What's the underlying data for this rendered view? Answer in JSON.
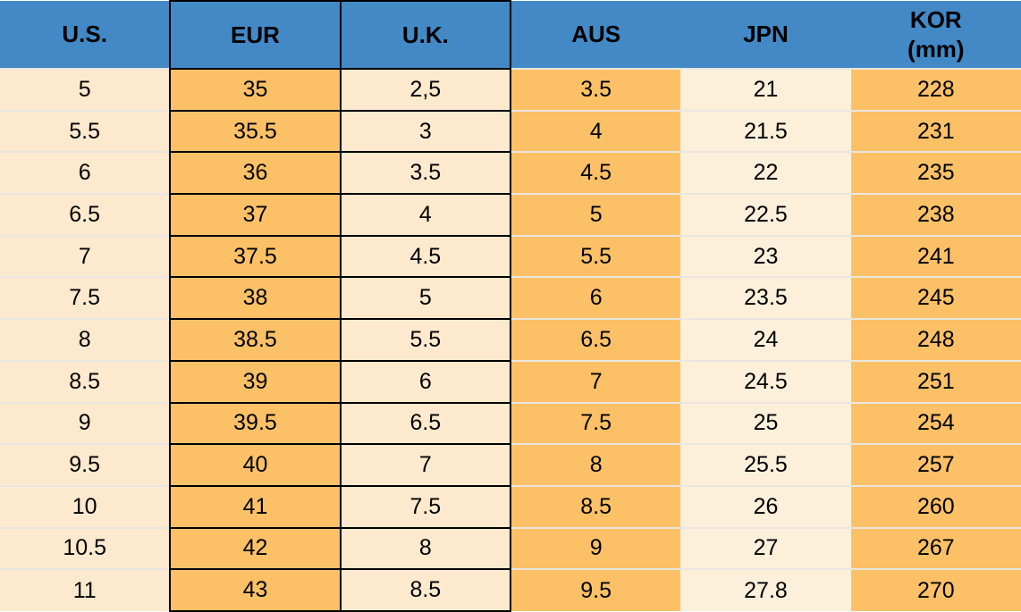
{
  "colors": {
    "header_bg": "#4289C6",
    "cream": "#FDE9CD",
    "jpn_cream": "#FCF0DB",
    "orange": "#FCC167",
    "black_border": "#000000",
    "row_separator": "#EAE6E0",
    "text": "#000000"
  },
  "chart_data": {
    "type": "table",
    "columns": [
      {
        "id": "us",
        "label": "U.S."
      },
      {
        "id": "eur",
        "label": "EUR"
      },
      {
        "id": "uk",
        "label": "U.K."
      },
      {
        "id": "aus",
        "label": "AUS"
      },
      {
        "id": "jpn",
        "label": "JPN"
      },
      {
        "id": "kor",
        "label": "KOR",
        "sublabel": "(mm)"
      }
    ],
    "rows": [
      [
        "5",
        "35",
        "2,5",
        "3.5",
        "21",
        "228"
      ],
      [
        "5.5",
        "35.5",
        "3",
        "4",
        "21.5",
        "231"
      ],
      [
        "6",
        "36",
        "3.5",
        "4.5",
        "22",
        "235"
      ],
      [
        "6.5",
        "37",
        "4",
        "5",
        "22.5",
        "238"
      ],
      [
        "7",
        "37.5",
        "4.5",
        "5.5",
        "23",
        "241"
      ],
      [
        "7.5",
        "38",
        "5",
        "6",
        "23.5",
        "245"
      ],
      [
        "8",
        "38.5",
        "5.5",
        "6.5",
        "24",
        "248"
      ],
      [
        "8.5",
        "39",
        "6",
        "7",
        "24.5",
        "251"
      ],
      [
        "9",
        "39.5",
        "6.5",
        "7.5",
        "25",
        "254"
      ],
      [
        "9.5",
        "40",
        "7",
        "8",
        "25.5",
        "257"
      ],
      [
        "10",
        "41",
        "7.5",
        "8.5",
        "26",
        "260"
      ],
      [
        "10.5",
        "42",
        "8",
        "9",
        "27",
        "267"
      ],
      [
        "11",
        "43",
        "8.5",
        "9.5",
        "27.8",
        "270"
      ]
    ]
  }
}
